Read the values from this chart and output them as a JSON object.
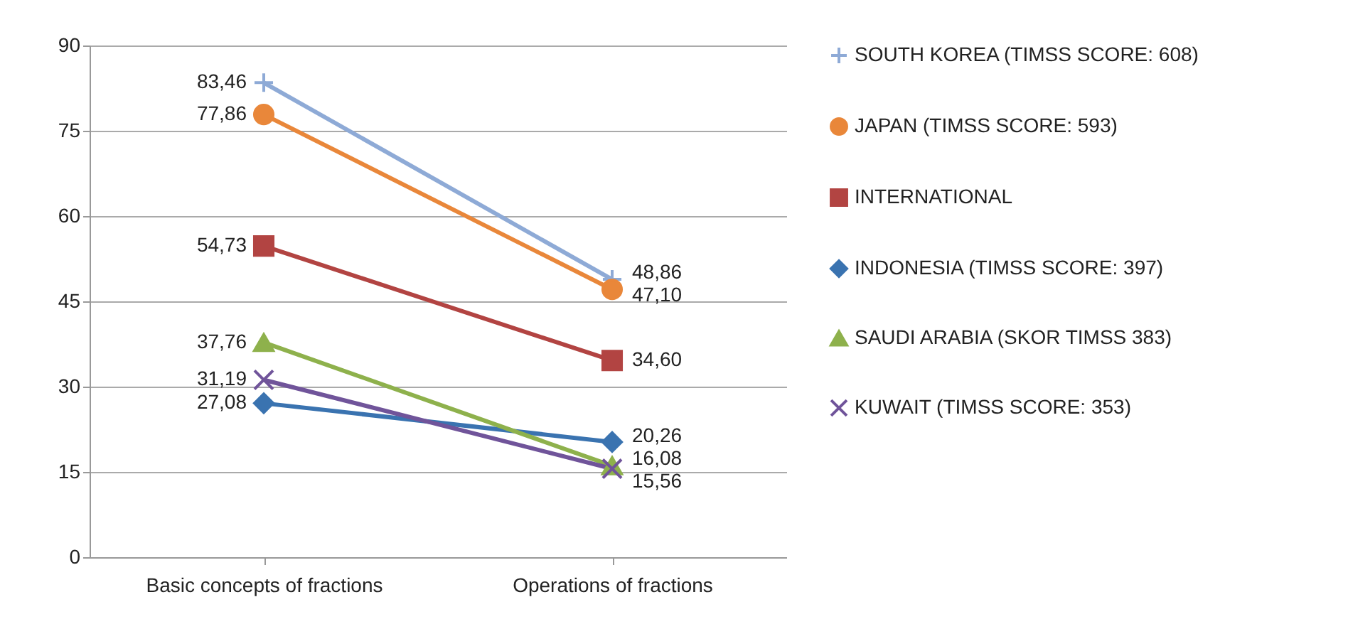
{
  "chart_data": {
    "type": "line",
    "categories": [
      "Basic concepts of fractions",
      "Operations of fractions"
    ],
    "series": [
      {
        "name": "SOUTH KOREA (TIMSS SCORE: 608)",
        "color": "#8eaad6",
        "marker": "plus",
        "values": [
          83.46,
          48.86
        ],
        "value_labels": [
          "83,46",
          "48,86"
        ]
      },
      {
        "name": "JAPAN (TIMSS SCORE: 593)",
        "color": "#e9873a",
        "marker": "circle",
        "values": [
          77.86,
          47.1
        ],
        "value_labels": [
          "77,86",
          "47,10"
        ]
      },
      {
        "name": "INTERNATIONAL",
        "color": "#b24442",
        "marker": "square",
        "values": [
          54.73,
          34.6
        ],
        "value_labels": [
          "54,73",
          "34,60"
        ]
      },
      {
        "name": "INDONESIA (TIMSS SCORE: 397)",
        "color": "#3a73b0",
        "marker": "diamond",
        "values": [
          27.08,
          20.26
        ],
        "value_labels": [
          "27,08",
          "20,26"
        ]
      },
      {
        "name": "SAUDI ARABIA (SKOR TIMSS 383)",
        "color": "#8eb14c",
        "marker": "triangle",
        "values": [
          37.76,
          16.08
        ],
        "value_labels": [
          "37,76",
          "16,08"
        ]
      },
      {
        "name": "KUWAIT (TIMSS SCORE: 353)",
        "color": "#70549a",
        "marker": "cross",
        "values": [
          31.19,
          15.56
        ],
        "value_labels": [
          "31,19",
          "15,56"
        ]
      }
    ],
    "ylim": [
      0,
      90
    ],
    "yticks": [
      0,
      15,
      30,
      45,
      60,
      75,
      90
    ],
    "grid": "y",
    "legend": "right"
  }
}
